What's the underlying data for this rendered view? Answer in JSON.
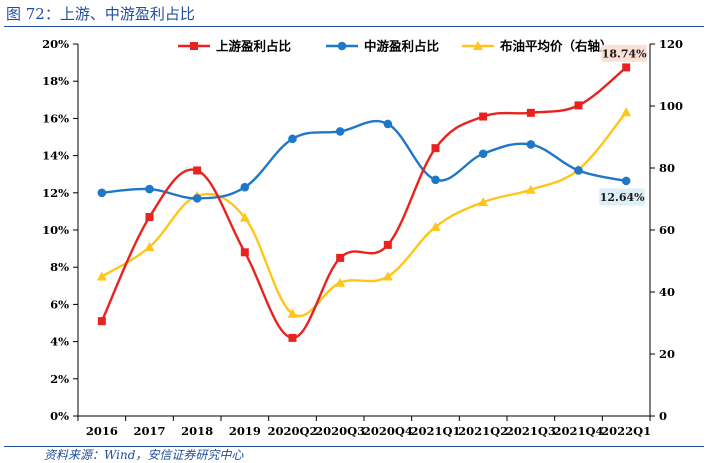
{
  "header": {
    "title": "图 72：上游、中游盈利占比"
  },
  "footer": {
    "source": "资料来源：Wind，安信证券研究中心"
  },
  "colors": {
    "upstream": "#e8231f",
    "midstream": "#1f77c8",
    "oil": "#ffc51a",
    "accent": "#1f4e9d"
  },
  "chart_data": {
    "type": "line",
    "categories": [
      "2016",
      "2017",
      "2018",
      "2019",
      "2020Q2",
      "2020Q3",
      "2020Q4",
      "2021Q1",
      "2021Q2",
      "2021Q3",
      "2021Q4",
      "2022Q1"
    ],
    "series": [
      {
        "name": "上游盈利占比",
        "axis": "left",
        "marker": "square",
        "color": "#e8231f",
        "values": [
          5.1,
          10.7,
          13.2,
          8.8,
          4.2,
          8.5,
          9.2,
          14.4,
          16.1,
          16.3,
          16.7,
          18.74
        ]
      },
      {
        "name": "中游盈利占比",
        "axis": "left",
        "marker": "circle",
        "color": "#1f77c8",
        "values": [
          12.0,
          12.2,
          11.7,
          12.3,
          14.9,
          15.3,
          15.7,
          12.7,
          14.1,
          14.6,
          13.2,
          12.64
        ]
      },
      {
        "name": "布油平均价（右轴）",
        "axis": "right",
        "marker": "triangle",
        "color": "#ffc51a",
        "values": [
          45,
          54.5,
          71,
          64,
          33,
          43,
          45,
          61,
          69,
          73,
          79.5,
          98
        ]
      }
    ],
    "left_axis": {
      "min": 0,
      "max": 20,
      "step": 2,
      "ticks": [
        "0%",
        "2%",
        "4%",
        "6%",
        "8%",
        "10%",
        "12%",
        "14%",
        "16%",
        "18%",
        "20%"
      ]
    },
    "right_axis": {
      "min": 0,
      "max": 120,
      "step": 20,
      "ticks": [
        "0",
        "20",
        "40",
        "60",
        "80",
        "100",
        "120"
      ]
    },
    "annotations": [
      {
        "series": 0,
        "index": 11,
        "text": "18.74%",
        "bg": "#fbe1d5"
      },
      {
        "series": 1,
        "index": 11,
        "text": "12.64%",
        "bg": "#dceef7"
      }
    ],
    "legend": {
      "position": "top"
    }
  }
}
